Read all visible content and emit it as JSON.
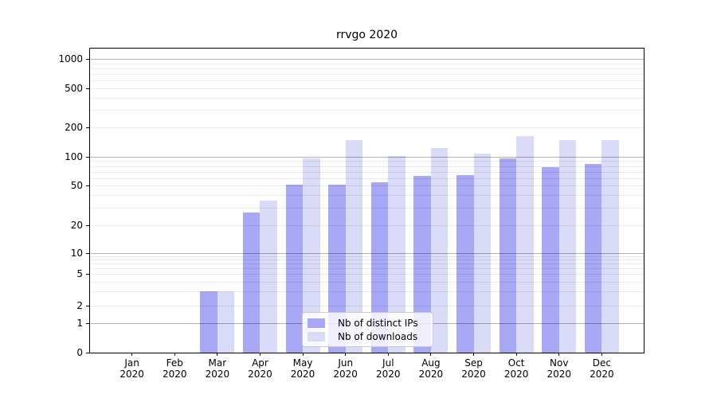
{
  "chart_data": {
    "type": "bar",
    "title": "rrvgo 2020",
    "categories": [
      "Jan",
      "Feb",
      "Mar",
      "Apr",
      "May",
      "Jun",
      "Jul",
      "Aug",
      "Sep",
      "Oct",
      "Nov",
      "Dec"
    ],
    "year_label": "2020",
    "series": [
      {
        "name": "Nb of distinct IPs",
        "color": "#a8a8f6",
        "values": [
          0,
          0,
          3,
          27,
          51,
          51,
          54,
          63,
          64,
          97,
          78,
          84
        ]
      },
      {
        "name": "Nb of downloads",
        "color": "#dadaf9",
        "values": [
          0,
          0,
          3,
          35,
          96,
          149,
          101,
          123,
          108,
          162,
          148,
          147
        ]
      }
    ],
    "xlabel": "",
    "ylabel": "",
    "yscale": "symlog",
    "y_ticks": [
      0,
      1,
      2,
      5,
      10,
      20,
      50,
      100,
      200,
      500,
      1000
    ],
    "ylim": [
      0,
      1150
    ],
    "grid": true,
    "legend_position": "inside bottom-center"
  }
}
